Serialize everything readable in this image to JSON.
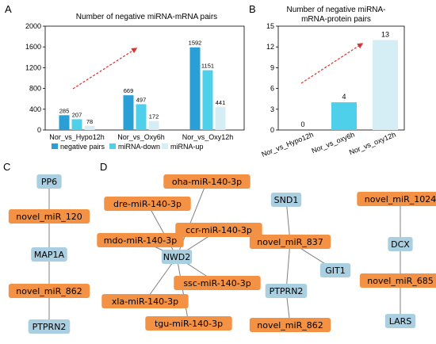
{
  "panels": {
    "a": "A",
    "b": "B",
    "c": "C",
    "d": "D"
  },
  "chart_data": [
    {
      "type": "bar",
      "title": "Number of negative miRNA-mRNA pairs",
      "categories": [
        "Nor_vs_Hypo12h",
        "Nor_vs_Oxy6h",
        "Nor_vs_Oxy12h"
      ],
      "yticks": [
        0,
        400,
        800,
        1200,
        1600,
        2000
      ],
      "ylim": [
        0,
        2000
      ],
      "series": [
        {
          "name": "negative pairs",
          "values": [
            285,
            669,
            1592
          ],
          "color": "#2a9fd6"
        },
        {
          "name": "miRNA-down",
          "values": [
            207,
            497,
            1151
          ],
          "color": "#4fd0ea"
        },
        {
          "name": "miRNA-up",
          "values": [
            78,
            172,
            441
          ],
          "color": "#d5edf5"
        }
      ],
      "legend": "bottom",
      "annotation": "trend-arrow"
    },
    {
      "type": "bar",
      "title_lines": [
        "Number of negative miRNA-",
        "mRNA-protein pairs"
      ],
      "categories": [
        "Nor_vs_Hypo12h",
        "Nor_vs_oxy6h",
        "Nor_vs_oxy12h"
      ],
      "values": [
        0,
        4,
        13
      ],
      "colors": [
        "#2a9fd6",
        "#4fd0ea",
        "#d5edf5"
      ],
      "yticks": [
        0,
        3,
        6,
        9,
        12,
        15
      ],
      "ylim": [
        0,
        15
      ],
      "annotation": "trend-arrow"
    }
  ],
  "network": {
    "colors": {
      "mrna": "#a9cfe0",
      "mirna": "#f39244",
      "edge": "#7f7f7f"
    },
    "c": {
      "nodes": [
        {
          "id": "PP6",
          "label": "PP6",
          "type": "mrna"
        },
        {
          "id": "c120",
          "label": "novel_miR_120",
          "type": "mirna"
        },
        {
          "id": "MAP1A",
          "label": "MAP1A",
          "type": "mrna"
        },
        {
          "id": "c862",
          "label": "novel_miR_862",
          "type": "mirna"
        },
        {
          "id": "PTPRN2c",
          "label": "PTPRN2",
          "type": "mrna"
        }
      ],
      "edges": [
        [
          "PP6",
          "c120"
        ],
        [
          "c120",
          "MAP1A"
        ],
        [
          "MAP1A",
          "c862"
        ],
        [
          "c862",
          "PTPRN2c"
        ]
      ]
    },
    "d": {
      "nodes": [
        {
          "id": "NWD2",
          "label": "NWD2",
          "type": "mrna"
        },
        {
          "id": "oha",
          "label": "oha-miR-140-3p",
          "type": "mirna"
        },
        {
          "id": "dre",
          "label": "dre-miR-140-3p",
          "type": "mirna"
        },
        {
          "id": "ccr",
          "label": "ccr-miR-140-3p",
          "type": "mirna"
        },
        {
          "id": "mdo",
          "label": "mdo-miR-140-3p",
          "type": "mirna"
        },
        {
          "id": "ssc",
          "label": "ssc-miR-140-3p",
          "type": "mirna"
        },
        {
          "id": "xla",
          "label": "xla-miR-140-3p",
          "type": "mirna"
        },
        {
          "id": "tgu",
          "label": "tgu-miR-140-3p",
          "type": "mirna"
        },
        {
          "id": "SND1",
          "label": "SND1",
          "type": "mrna"
        },
        {
          "id": "d837",
          "label": "novel_miR_837",
          "type": "mirna"
        },
        {
          "id": "GIT1",
          "label": "GIT1",
          "type": "mrna"
        },
        {
          "id": "PTPRN2d",
          "label": "PTPRN2",
          "type": "mrna"
        },
        {
          "id": "d862",
          "label": "novel_miR_862",
          "type": "mirna"
        },
        {
          "id": "d1024",
          "label": "novel_miR_1024",
          "type": "mirna"
        },
        {
          "id": "DCX",
          "label": "DCX",
          "type": "mrna"
        },
        {
          "id": "d685",
          "label": "novel_miR_685",
          "type": "mirna"
        },
        {
          "id": "LARS",
          "label": "LARS",
          "type": "mrna"
        }
      ],
      "edges": [
        [
          "NWD2",
          "oha"
        ],
        [
          "NWD2",
          "dre"
        ],
        [
          "NWD2",
          "ccr"
        ],
        [
          "NWD2",
          "mdo"
        ],
        [
          "NWD2",
          "ssc"
        ],
        [
          "NWD2",
          "xla"
        ],
        [
          "NWD2",
          "tgu"
        ],
        [
          "SND1",
          "d837"
        ],
        [
          "d837",
          "GIT1"
        ],
        [
          "d837",
          "PTPRN2d"
        ],
        [
          "PTPRN2d",
          "d862"
        ],
        [
          "d1024",
          "DCX"
        ],
        [
          "DCX",
          "d685"
        ],
        [
          "d685",
          "LARS"
        ]
      ]
    }
  }
}
